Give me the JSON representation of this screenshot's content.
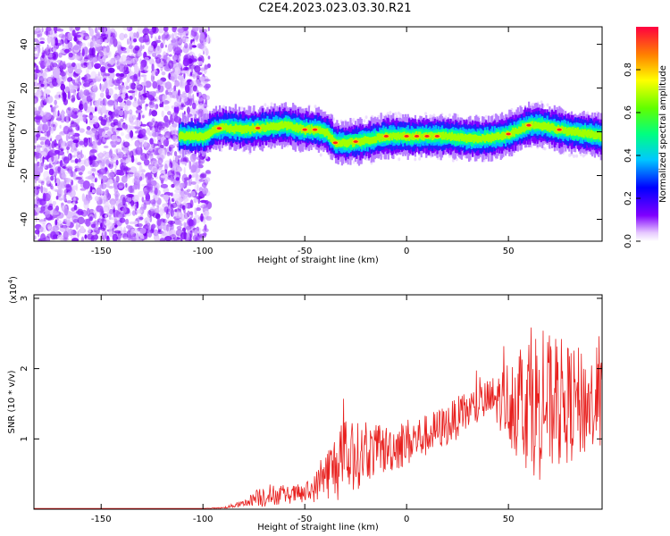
{
  "title": "C2E4.2023.023.03.30.R21",
  "chart_data": [
    {
      "type": "heatmap",
      "xlabel": "Height of straight line (km)",
      "ylabel": "Frequency (Hz)",
      "xlim": [
        -183,
        96
      ],
      "ylim": [
        -50,
        48
      ],
      "xticks": [
        -150,
        -100,
        -50,
        0,
        50
      ],
      "yticks": [
        -40,
        -20,
        0,
        20,
        40
      ],
      "colorbar": {
        "label": "Normalized spectral amplitude",
        "range": [
          0,
          1
        ],
        "ticks": [
          0.0,
          0.2,
          0.4,
          0.6,
          0.8
        ],
        "colormap": "rainbow"
      },
      "ridge": {
        "x": [
          -100,
          -95,
          -90,
          -80,
          -70,
          -60,
          -50,
          -45,
          -40,
          -35,
          -30,
          -20,
          -10,
          0,
          10,
          20,
          30,
          40,
          50,
          55,
          60,
          65,
          70,
          80,
          90,
          96
        ],
        "y": [
          -2,
          1,
          2,
          1,
          2,
          3,
          1,
          1,
          0,
          -5,
          -5,
          -4,
          -2,
          -2,
          -2,
          -2,
          -3,
          -3,
          -1,
          1,
          3,
          3,
          2,
          0,
          -1,
          -2
        ]
      },
      "noise_region_xmax": -100
    },
    {
      "type": "line",
      "xlabel": "Height of straight line (km)",
      "ylabel": "SNR (10 * v/v)",
      "yscale_label": "(x10",
      "yscale_exp": "4",
      "yscale_close": ")",
      "xlim": [
        -183,
        96
      ],
      "ylim": [
        0,
        3.05
      ],
      "xticks": [
        -150,
        -100,
        -50,
        0,
        50
      ],
      "yticks": [
        1,
        2,
        3
      ],
      "color": "#e8211f",
      "envelope": {
        "x": [
          -183,
          -100,
          -90,
          -80,
          -75,
          -70,
          -60,
          -50,
          -45,
          -40,
          -35,
          -30,
          -25,
          -20,
          -10,
          0,
          10,
          20,
          30,
          40,
          45,
          50,
          55,
          60,
          65,
          70,
          75,
          80,
          85,
          90,
          96
        ],
        "base": [
          0.01,
          0.01,
          0.02,
          0.08,
          0.15,
          0.2,
          0.2,
          0.22,
          0.3,
          0.5,
          0.6,
          0.7,
          0.75,
          0.8,
          0.85,
          0.95,
          1.05,
          1.2,
          1.4,
          1.55,
          1.55,
          1.55,
          1.55,
          1.55,
          1.5,
          1.5,
          1.5,
          1.5,
          1.5,
          1.5,
          1.5
        ],
        "amp": [
          0.0,
          0.0,
          0.01,
          0.05,
          0.1,
          0.18,
          0.12,
          0.15,
          0.2,
          0.35,
          0.5,
          0.6,
          0.5,
          0.4,
          0.35,
          0.35,
          0.3,
          0.3,
          0.3,
          0.3,
          0.4,
          0.6,
          0.9,
          1.0,
          1.1,
          1.0,
          0.95,
          0.85,
          0.8,
          0.75,
          0.7
        ]
      }
    }
  ]
}
